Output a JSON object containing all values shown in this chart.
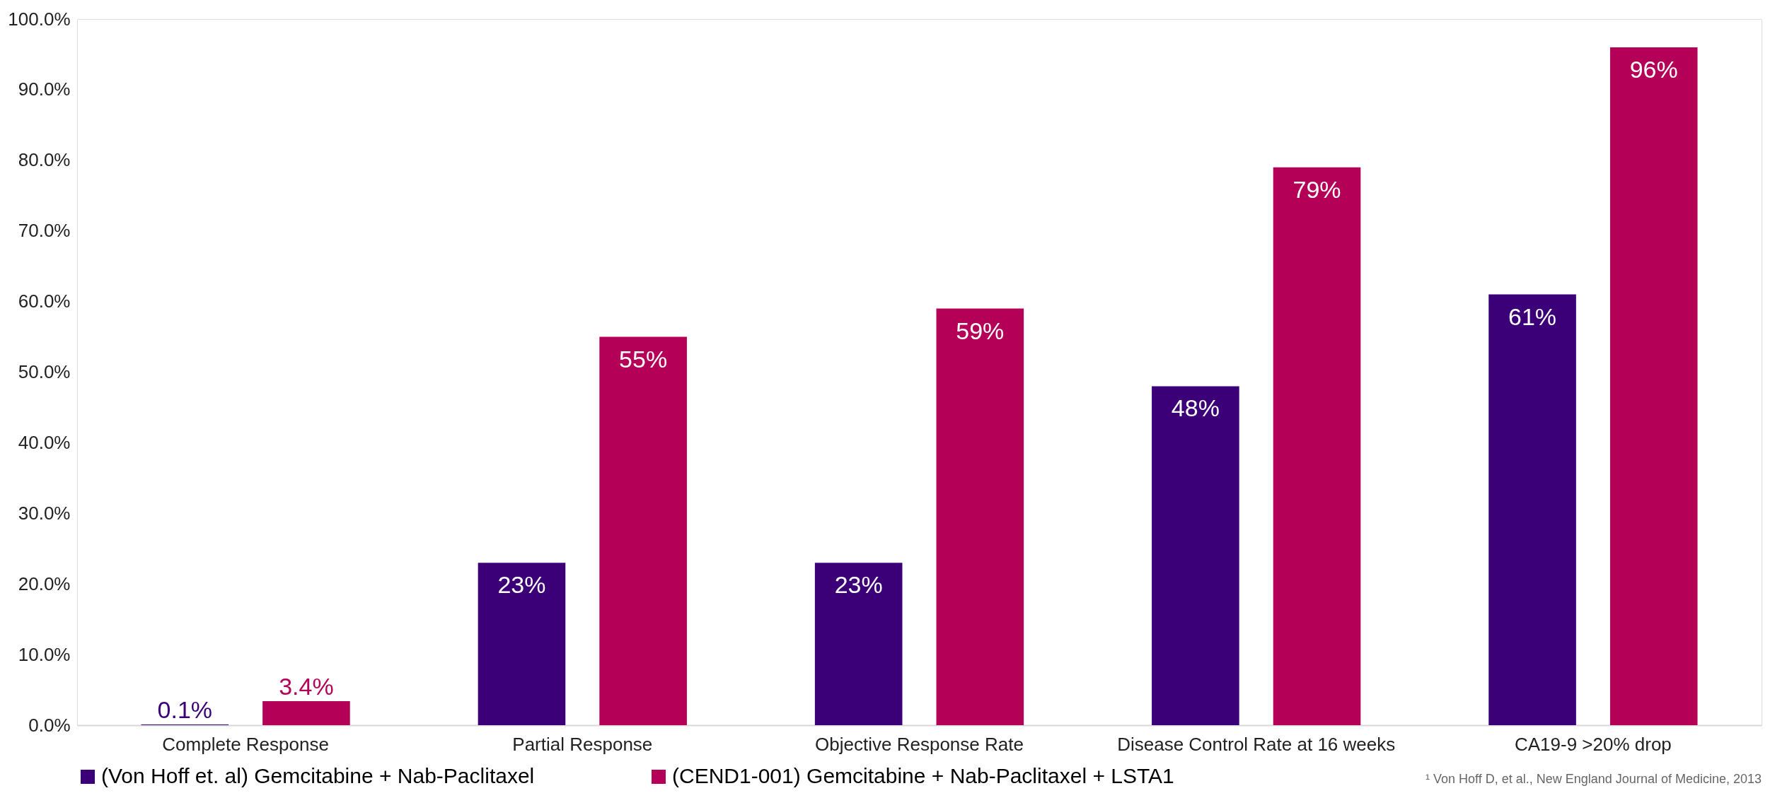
{
  "chart_data": {
    "type": "bar",
    "categories": [
      "Complete Response",
      "Partial Response",
      "Objective Response Rate",
      "Disease Control Rate at 16 weeks",
      "CA19-9 >20% drop"
    ],
    "series": [
      {
        "name": "(Von Hoff et. al) Gemcitabine + Nab-Paclitaxel",
        "color": "#3b0078",
        "values": [
          0.1,
          23,
          23,
          48,
          61
        ],
        "value_labels": [
          "0.1%",
          "23%",
          "23%",
          "48%",
          "61%"
        ]
      },
      {
        "name": "(CEND1-001) Gemcitabine + Nab-Paclitaxel + LSTA1",
        "color": "#b40057",
        "values": [
          3.4,
          55,
          59,
          79,
          96
        ],
        "value_labels": [
          "3.4%",
          "55%",
          "59%",
          "79%",
          "96%"
        ]
      }
    ],
    "ylim": [
      0,
      100
    ],
    "yticks": [
      {
        "value": 0,
        "label": "0.0%"
      },
      {
        "value": 10,
        "label": "10.0%"
      },
      {
        "value": 20,
        "label": "20.0%"
      },
      {
        "value": 30,
        "label": "30.0%"
      },
      {
        "value": 40,
        "label": "40.0%"
      },
      {
        "value": 50,
        "label": "50.0%"
      },
      {
        "value": 60,
        "label": "60.0%"
      },
      {
        "value": 70,
        "label": "70.0%"
      },
      {
        "value": 80,
        "label": "80.0%"
      },
      {
        "value": 90,
        "label": "90.0%"
      },
      {
        "value": 100,
        "label": "100.0%"
      }
    ],
    "grid": false,
    "legend": "bottom",
    "annotations": [
      "¹ Von Hoff D, et al., New England Journal of Medicine, 2013"
    ]
  }
}
